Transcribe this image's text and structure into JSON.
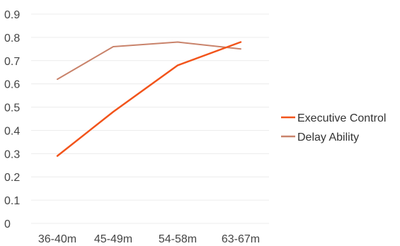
{
  "chart_data": {
    "type": "line",
    "title": "",
    "xlabel": "",
    "ylabel": "",
    "categories": [
      "36-40m",
      "45-49m",
      "54-58m",
      "63-67m"
    ],
    "ylim": [
      0,
      0.9
    ],
    "yticks": [
      "0",
      "0.1",
      "0.2",
      "0.3",
      "0.4",
      "0.5",
      "0.6",
      "0.7",
      "0.8",
      "0.9"
    ],
    "grid": true,
    "legend_position": "right",
    "series": [
      {
        "name": "Executive Control",
        "color": "#f2541b",
        "values": [
          0.29,
          0.48,
          0.68,
          0.78
        ]
      },
      {
        "name": "Delay Ability",
        "color": "#c9836b",
        "values": [
          0.62,
          0.76,
          0.78,
          0.75
        ]
      }
    ]
  }
}
